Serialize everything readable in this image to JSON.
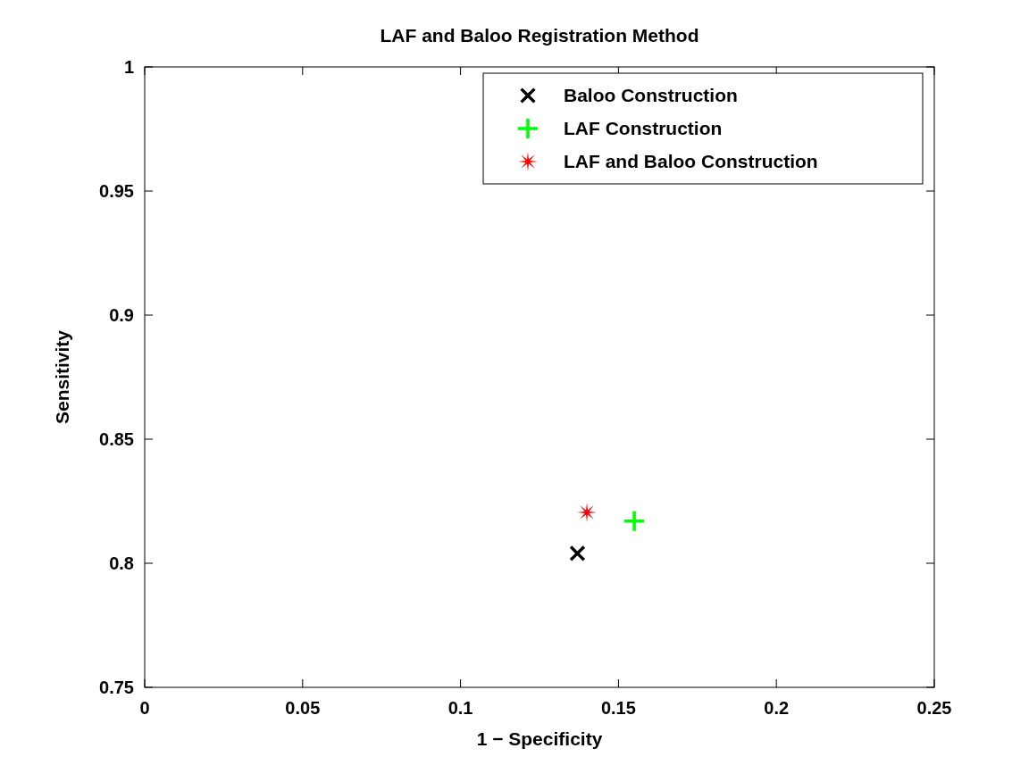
{
  "chart_data": {
    "type": "scatter",
    "title": "LAF and Baloo Registration Method",
    "xlabel": "1 − Specificity",
    "ylabel": "Sensitivity",
    "xlim": [
      0,
      0.25
    ],
    "xticks": [
      0,
      0.05,
      0.1,
      0.15,
      0.2,
      0.25
    ],
    "ylim": [
      0.75,
      1
    ],
    "yticks": [
      0.75,
      0.8,
      0.85,
      0.9,
      0.95,
      1
    ],
    "grid": false,
    "legend": "top right",
    "series": [
      {
        "name": "Baloo Construction",
        "color": "#000000",
        "marker": "x",
        "x": [
          0.137
        ],
        "values": [
          0.804
        ]
      },
      {
        "name": "LAF Construction",
        "color": "#00ff00",
        "marker": "cross",
        "x": [
          0.155
        ],
        "values": [
          0.817
        ]
      },
      {
        "name": "LAF and Baloo Construction",
        "color": "#ff0000",
        "marker": "star",
        "x": [
          0.14
        ],
        "values": [
          0.8205
        ]
      }
    ]
  }
}
